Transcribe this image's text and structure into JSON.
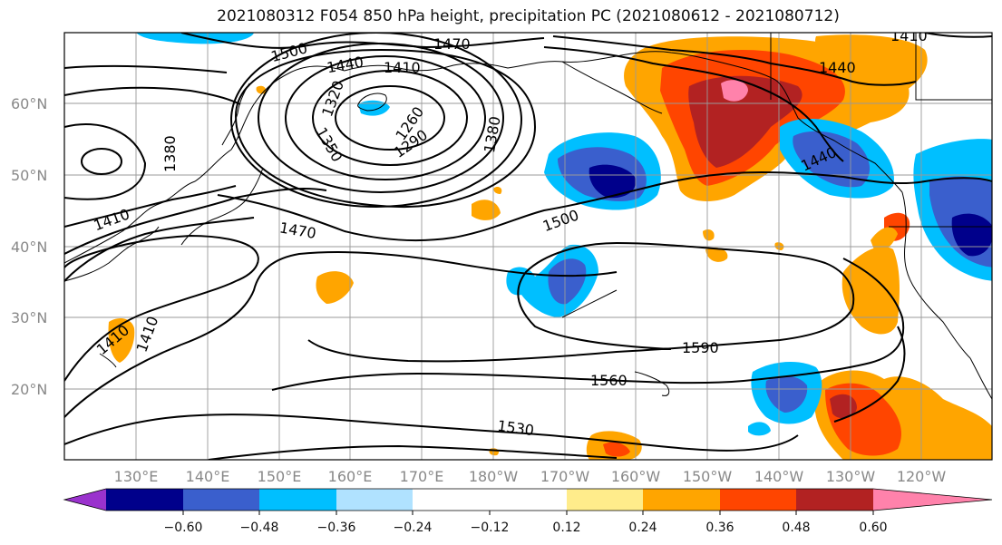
{
  "title": "2021080312 F054 850 hPa height, precipitation PC (2021080612 - 2021080712)",
  "lat_labels": [
    "60°N",
    "50°N",
    "40°N",
    "30°N",
    "20°N"
  ],
  "lon_labels": [
    "130°E",
    "140°E",
    "150°E",
    "160°E",
    "170°E",
    "180°W",
    "170°W",
    "160°W",
    "150°W",
    "140°W",
    "130°W",
    "120°W"
  ],
  "contour_labels": [
    "1500",
    "1470",
    "1440",
    "1410",
    "1320",
    "1350",
    "1260",
    "1290",
    "1380",
    "1380",
    "1410",
    "1470",
    "1500",
    "1590",
    "1560",
    "1530",
    "1410",
    "1410",
    "1440",
    "1440",
    "1410"
  ],
  "colorbar": {
    "colors": [
      "#9a32cd",
      "#00008b",
      "#3a5fcd",
      "#00bfff",
      "#b0e2ff",
      "#ffffff",
      "#ffec8b",
      "#ffa500",
      "#ff4500",
      "#b22222",
      "#ff82ab"
    ],
    "tick_labels": [
      "−0.60",
      "−0.48",
      "−0.36",
      "−0.24",
      "−0.12",
      "0.12",
      "0.24",
      "0.36",
      "0.48",
      "0.60"
    ]
  }
}
